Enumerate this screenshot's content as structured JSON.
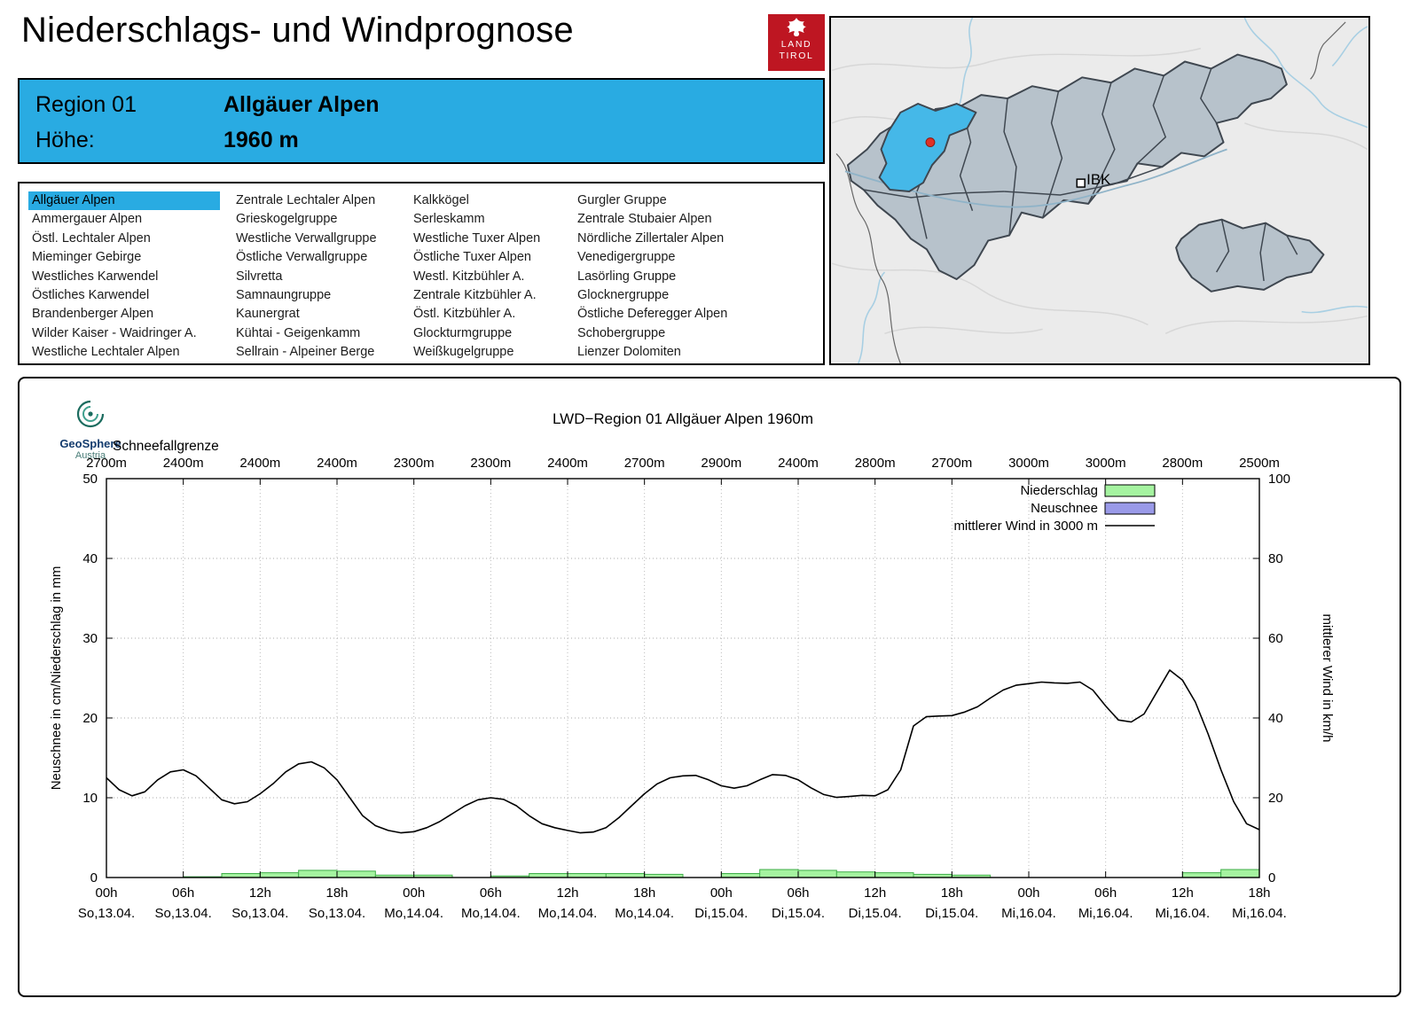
{
  "header": {
    "title": "Niederschlags- und Windprognose",
    "tirol_logo": {
      "line1": "LAND",
      "line2": "TIROL"
    }
  },
  "region_box": {
    "region_label": "Region 01",
    "region_name": "Allgäuer Alpen",
    "altitude_label": "Höhe:",
    "altitude_value": "1960 m"
  },
  "region_list": {
    "selected": "Allgäuer Alpen",
    "columns": [
      [
        "Allgäuer Alpen",
        "Ammergauer Alpen",
        "Östl. Lechtaler Alpen",
        "Mieminger Gebirge",
        "Westliches Karwendel",
        "Östliches Karwendel",
        "Brandenberger Alpen",
        "Wilder Kaiser - Waidringer A.",
        "Westliche Lechtaler Alpen"
      ],
      [
        "Zentrale Lechtaler Alpen",
        "Grieskogelgruppe",
        "Westliche Verwallgruppe",
        "Östliche Verwallgruppe",
        "Silvretta",
        "Samnaungruppe",
        "Kaunergrat",
        "Kühtai - Geigenkamm",
        "Sellrain - Alpeiner Berge"
      ],
      [
        "Kalkkögel",
        "Serleskamm",
        "Westliche Tuxer Alpen",
        "Östliche Tuxer Alpen",
        "Westl. Kitzbühler A.",
        "Zentrale Kitzbühler A.",
        "Östl. Kitzbühler A.",
        "Glockturmgruppe",
        "Weißkugelgruppe"
      ],
      [
        "Gurgler Gruppe",
        "Zentrale Stubaier Alpen",
        "Nördliche Zillertaler Alpen",
        "Venedigergruppe",
        "Lasörling Gruppe",
        "Glocknergruppe",
        "Östliche Deferegger Alpen",
        "Schobergruppe",
        "Lienzer Dolomiten"
      ]
    ]
  },
  "map": {
    "ibk_label": "IBK"
  },
  "geosphere_logo": {
    "name": "GeoSphere",
    "sub": "Austria"
  },
  "colors": {
    "tirol_red": "#BE1622",
    "selection_blue": "#29ABE2",
    "map_highlight_blue": "#45B8E8",
    "precip_green_fill": "#A5F3A0",
    "precip_green_edge": "#3FAE49",
    "neuschnee_blue": "#9A9AE8",
    "wind_line": "#000000"
  },
  "chart_data": {
    "type": "line+bar",
    "title": "LWD−Region 01 Allgäuer Alpen 1960m",
    "snowline_label": "Schneefallgrenze",
    "snowline_values": [
      "2700m",
      "2400m",
      "2400m",
      "2400m",
      "2300m",
      "2300m",
      "2400m",
      "2700m",
      "2900m",
      "2400m",
      "2800m",
      "2700m",
      "3000m",
      "3000m",
      "2800m",
      "2500m"
    ],
    "ylabel_left": "Neuschnee in cm/Niederschlag in mm",
    "ylabel_right": "mittlerer Wind in km/h",
    "ylim_left": [
      0,
      50
    ],
    "ylim_right": [
      0,
      100
    ],
    "yticks_left": [
      0,
      10,
      20,
      30,
      40,
      50
    ],
    "yticks_right": [
      0,
      20,
      40,
      60,
      80,
      100
    ],
    "x_total_hours": 90,
    "x_tick_step_hours": 6,
    "x_tick_times": [
      "00h",
      "06h",
      "12h",
      "18h",
      "00h",
      "06h",
      "12h",
      "18h",
      "00h",
      "06h",
      "12h",
      "18h",
      "00h",
      "06h",
      "12h",
      "18h"
    ],
    "x_tick_dates": [
      "So,13.04.",
      "So,13.04.",
      "So,13.04.",
      "So,13.04.",
      "Mo,14.04.",
      "Mo,14.04.",
      "Mo,14.04.",
      "Mo,14.04.",
      "Di,15.04.",
      "Di,15.04.",
      "Di,15.04.",
      "Di,15.04.",
      "Mi,16.04.",
      "Mi,16.04.",
      "Mi,16.04.",
      "Mi,16.04."
    ],
    "legend": [
      {
        "label": "Niederschlag",
        "swatch": "box-green"
      },
      {
        "label": "Neuschnee",
        "swatch": "box-blue"
      },
      {
        "label": "mittlerer Wind in 3000 m",
        "swatch": "line-black"
      }
    ],
    "series": {
      "wind_kmh": {
        "name": "mittlerer Wind in 3000 m",
        "axis": "right",
        "points": [
          [
            0,
            25
          ],
          [
            1,
            22
          ],
          [
            2,
            20.5
          ],
          [
            3,
            21.5
          ],
          [
            4,
            24.5
          ],
          [
            5,
            26.5
          ],
          [
            6,
            27
          ],
          [
            7,
            25.5
          ],
          [
            8,
            22.5
          ],
          [
            9,
            19.5
          ],
          [
            10,
            18.5
          ],
          [
            11,
            19
          ],
          [
            12,
            21
          ],
          [
            13,
            23.5
          ],
          [
            14,
            26.5
          ],
          [
            15,
            28.5
          ],
          [
            16,
            29
          ],
          [
            17,
            27.5
          ],
          [
            18,
            24.5
          ],
          [
            19,
            20
          ],
          [
            20,
            15.5
          ],
          [
            21,
            13
          ],
          [
            22,
            11.8
          ],
          [
            23,
            11.2
          ],
          [
            24,
            11.5
          ],
          [
            25,
            12.5
          ],
          [
            26,
            14
          ],
          [
            27,
            16
          ],
          [
            28,
            18
          ],
          [
            29,
            19.5
          ],
          [
            30,
            20
          ],
          [
            31,
            19.6
          ],
          [
            32,
            18
          ],
          [
            33,
            15.5
          ],
          [
            34,
            13.5
          ],
          [
            35,
            12.5
          ],
          [
            36,
            11.8
          ],
          [
            37,
            11.2
          ],
          [
            38,
            11.4
          ],
          [
            39,
            12.5
          ],
          [
            40,
            15
          ],
          [
            41,
            18
          ],
          [
            42,
            21
          ],
          [
            43,
            23.5
          ],
          [
            44,
            25
          ],
          [
            45,
            25.5
          ],
          [
            46,
            25.6
          ],
          [
            47,
            24.5
          ],
          [
            48,
            23
          ],
          [
            49,
            22.4
          ],
          [
            50,
            23
          ],
          [
            51,
            24.5
          ],
          [
            52,
            25.8
          ],
          [
            53,
            25.6
          ],
          [
            54,
            24.5
          ],
          [
            55,
            22.5
          ],
          [
            56,
            20.8
          ],
          [
            57,
            20.1
          ],
          [
            58,
            20.3
          ],
          [
            59,
            20.6
          ],
          [
            60,
            20.5
          ],
          [
            61,
            22
          ],
          [
            62,
            27
          ],
          [
            63,
            38
          ],
          [
            64,
            40.3
          ],
          [
            65,
            40.5
          ],
          [
            66,
            40.6
          ],
          [
            67,
            41.5
          ],
          [
            68,
            42.8
          ],
          [
            69,
            45
          ],
          [
            70,
            47
          ],
          [
            71,
            48.2
          ],
          [
            72,
            48.6
          ],
          [
            73,
            49
          ],
          [
            74,
            48.8
          ],
          [
            75,
            48.7
          ],
          [
            76,
            49
          ],
          [
            77,
            47
          ],
          [
            78,
            43
          ],
          [
            79,
            39.5
          ],
          [
            80,
            39
          ],
          [
            81,
            41
          ],
          [
            82,
            46.5
          ],
          [
            83,
            52
          ],
          [
            84,
            49.5
          ],
          [
            85,
            44
          ],
          [
            86,
            36
          ],
          [
            87,
            27
          ],
          [
            88,
            19
          ],
          [
            89,
            13.5
          ],
          [
            90,
            12
          ]
        ]
      },
      "niederschlag_mm": {
        "name": "Niederschlag",
        "axis": "left",
        "bar_interval_hours": 3,
        "values": [
          0,
          0,
          0.1,
          0.5,
          0.6,
          0.9,
          0.8,
          0.3,
          0.3,
          0,
          0.2,
          0.5,
          0.5,
          0.5,
          0.4,
          0,
          0.5,
          1,
          0.9,
          0.7,
          0.6,
          0.4,
          0.3,
          0,
          0,
          0,
          0,
          0,
          0.6,
          1
        ]
      },
      "neuschnee_cm": {
        "name": "Neuschnee",
        "axis": "left",
        "bar_interval_hours": 3,
        "values": [
          0,
          0,
          0,
          0,
          0,
          0,
          0,
          0,
          0,
          0,
          0,
          0,
          0,
          0,
          0,
          0,
          0,
          0,
          0,
          0,
          0,
          0,
          0,
          0,
          0,
          0,
          0,
          0,
          0,
          0
        ]
      }
    }
  }
}
